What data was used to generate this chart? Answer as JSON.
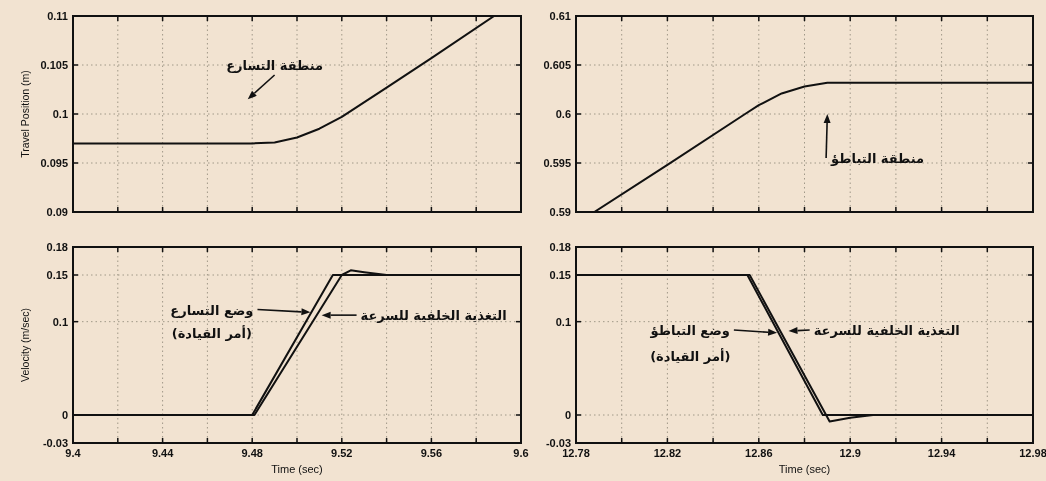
{
  "chart_data": [
    {
      "type": "line",
      "ylabel": "Travel Position (m)",
      "xlim": [
        9.4,
        9.6
      ],
      "ylim": [
        0.09,
        0.11
      ],
      "tick_labels": "y",
      "grid": true,
      "line_style": "solid",
      "xticks": [
        9.4,
        {
          "value": 9.42,
          "label": null
        },
        9.44,
        {
          "value": 9.46,
          "label": null
        },
        9.48,
        {
          "value": 9.5,
          "label": null
        },
        9.52,
        {
          "value": 9.54,
          "label": null
        },
        9.56,
        {
          "value": 9.58,
          "label": null
        },
        9.6
      ],
      "yticks": [
        0.09,
        0.095,
        0.1,
        0.105,
        0.11
      ],
      "series": [
        {
          "color": "#111111",
          "x": [
            9.4,
            9.48,
            9.49,
            9.5,
            9.51,
            9.52,
            9.54,
            9.56,
            9.588
          ],
          "values": [
            0.097,
            0.097,
            0.0971,
            0.0976,
            0.0985,
            0.0997,
            0.1027,
            0.1057,
            0.11
          ]
        }
      ],
      "annotations": [
        "منطقة التسارع"
      ]
    },
    {
      "type": "line",
      "xlim": [
        12.78,
        12.98
      ],
      "ylim": [
        0.59,
        0.61
      ],
      "tick_labels": "y",
      "grid": true,
      "line_style": "solid",
      "xticks": [
        12.78,
        {
          "value": 12.8,
          "label": null
        },
        12.82,
        {
          "value": 12.84,
          "label": null
        },
        12.86,
        {
          "value": 12.88,
          "label": null
        },
        12.9,
        {
          "value": 12.92,
          "label": null
        },
        12.94,
        {
          "value": 12.96,
          "label": null
        },
        12.98
      ],
      "yticks": [
        0.59,
        0.595,
        0.6,
        0.605,
        0.61
      ],
      "series": [
        {
          "color": "#111111",
          "x": [
            12.788,
            12.82,
            12.854,
            12.86,
            12.87,
            12.88,
            12.89,
            12.98
          ],
          "values": [
            0.59,
            0.5948,
            0.6,
            0.6009,
            0.6021,
            0.6028,
            0.6032,
            0.6032
          ]
        }
      ],
      "annotations": [
        "منطقة التباطؤ"
      ]
    },
    {
      "type": "line",
      "xlabel": "Time (sec)",
      "ylabel": "Velocity (m/sec)",
      "xlim": [
        9.4,
        9.6
      ],
      "ylim": [
        -0.03,
        0.18
      ],
      "grid": true,
      "line_style": "solid",
      "xticks": [
        9.4,
        {
          "value": 9.42,
          "label": null
        },
        9.44,
        {
          "value": 9.46,
          "label": null
        },
        9.48,
        {
          "value": 9.5,
          "label": null
        },
        9.52,
        {
          "value": 9.54,
          "label": null
        },
        9.56,
        {
          "value": 9.58,
          "label": null
        },
        9.6
      ],
      "yticks": [
        -0.03,
        0,
        0.1,
        0.15,
        0.18
      ],
      "series": [
        {
          "color": "#111111",
          "x": [
            9.4,
            9.48,
            9.516,
            9.6
          ],
          "values": [
            0,
            0,
            0.15,
            0.15
          ]
        },
        {
          "color": "#111111",
          "x": [
            9.4,
            9.481,
            9.52,
            9.524,
            9.53,
            9.54,
            9.6
          ],
          "values": [
            0,
            0,
            0.15,
            0.155,
            0.153,
            0.15,
            0.15
          ]
        }
      ],
      "annotations": [
        "وضع التسارع",
        "(أمر القيادة)",
        "التغذية الخلفية للسرعة"
      ]
    },
    {
      "type": "line",
      "xlabel": "Time (sec)",
      "xlim": [
        12.78,
        12.98
      ],
      "ylim": [
        -0.03,
        0.18
      ],
      "grid": true,
      "line_style": "solid",
      "xticks": [
        12.78,
        {
          "value": 12.8,
          "label": null
        },
        12.82,
        {
          "value": 12.84,
          "label": null
        },
        12.86,
        {
          "value": 12.88,
          "label": null
        },
        12.9,
        {
          "value": 12.92,
          "label": null
        },
        12.94,
        {
          "value": 12.96,
          "label": null
        },
        12.98
      ],
      "yticks": [
        -0.03,
        0,
        0.1,
        0.15,
        0.18
      ],
      "series": [
        {
          "color": "#111111",
          "x": [
            12.78,
            12.855,
            12.888,
            12.98
          ],
          "values": [
            0.15,
            0.15,
            0,
            0
          ]
        },
        {
          "color": "#111111",
          "x": [
            12.78,
            12.856,
            12.891,
            12.9,
            12.91,
            12.98
          ],
          "values": [
            0.15,
            0.15,
            -0.007,
            -0.003,
            0,
            0
          ]
        }
      ],
      "annotations": [
        "وضع التباطؤ",
        "(أمر القيادة)",
        "التغذية الخلفية للسرعة"
      ]
    }
  ]
}
